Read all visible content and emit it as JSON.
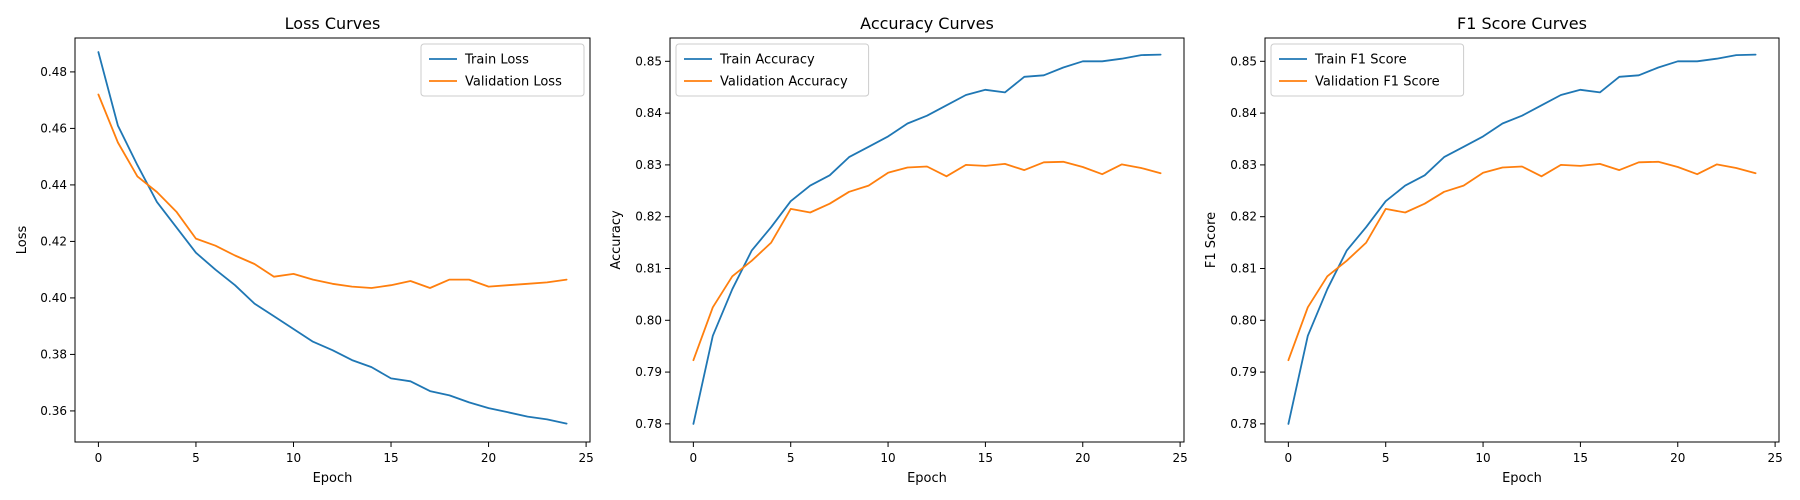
{
  "chart_data": [
    {
      "type": "line",
      "title": "Loss Curves",
      "xlabel": "Epoch",
      "ylabel": "Loss",
      "xlim": [
        -1.2,
        25.2
      ],
      "ylim": [
        0.349,
        0.492
      ],
      "xticks": [
        0,
        5,
        10,
        15,
        20,
        25
      ],
      "yticks": [
        0.36,
        0.38,
        0.4,
        0.42,
        0.44,
        0.46,
        0.48
      ],
      "ytick_labels": [
        "0.36",
        "0.38",
        "0.40",
        "0.42",
        "0.44",
        "0.46",
        "0.48"
      ],
      "legend": "upper right",
      "grid": false,
      "x": [
        0,
        1,
        2,
        3,
        4,
        5,
        6,
        7,
        8,
        9,
        10,
        11,
        12,
        13,
        14,
        15,
        16,
        17,
        18,
        19,
        20,
        21,
        22,
        23,
        24
      ],
      "series": [
        {
          "name": "Train Loss",
          "color": "#1f77b4",
          "values": [
            0.487,
            0.461,
            0.447,
            0.434,
            0.425,
            0.416,
            0.41,
            0.4045,
            0.398,
            0.3935,
            0.389,
            0.3845,
            0.3815,
            0.378,
            0.3755,
            0.3715,
            0.3705,
            0.367,
            0.3655,
            0.363,
            0.361,
            0.3595,
            0.358,
            0.357,
            0.3555
          ]
        },
        {
          "name": "Validation Loss",
          "color": "#ff7f0e",
          "values": [
            0.472,
            0.455,
            0.443,
            0.4375,
            0.4305,
            0.421,
            0.4185,
            0.415,
            0.412,
            0.4075,
            0.4085,
            0.4065,
            0.405,
            0.404,
            0.4035,
            0.4045,
            0.406,
            0.4035,
            0.4065,
            0.4065,
            0.404,
            0.4045,
            0.405,
            0.4055,
            0.4065
          ]
        }
      ]
    },
    {
      "type": "line",
      "title": "Accuracy Curves",
      "xlabel": "Epoch",
      "ylabel": "Accuracy",
      "xlim": [
        -1.2,
        25.2
      ],
      "ylim": [
        0.7765,
        0.8545
      ],
      "xticks": [
        0,
        5,
        10,
        15,
        20,
        25
      ],
      "yticks": [
        0.78,
        0.79,
        0.8,
        0.81,
        0.82,
        0.83,
        0.84,
        0.85
      ],
      "ytick_labels": [
        "0.78",
        "0.79",
        "0.80",
        "0.81",
        "0.82",
        "0.83",
        "0.84",
        "0.85"
      ],
      "legend": "upper left",
      "grid": false,
      "x": [
        0,
        1,
        2,
        3,
        4,
        5,
        6,
        7,
        8,
        9,
        10,
        11,
        12,
        13,
        14,
        15,
        16,
        17,
        18,
        19,
        20,
        21,
        22,
        23,
        24
      ],
      "series": [
        {
          "name": "Train Accuracy",
          "color": "#1f77b4",
          "values": [
            0.78,
            0.797,
            0.806,
            0.8135,
            0.818,
            0.823,
            0.826,
            0.828,
            0.8315,
            0.8335,
            0.8355,
            0.838,
            0.8395,
            0.8415,
            0.8435,
            0.8445,
            0.844,
            0.847,
            0.8473,
            0.8488,
            0.85,
            0.85,
            0.8505,
            0.8512,
            0.8513
          ]
        },
        {
          "name": "Validation Accuracy",
          "color": "#ff7f0e",
          "values": [
            0.7923,
            0.8025,
            0.8085,
            0.8115,
            0.815,
            0.8215,
            0.8208,
            0.8225,
            0.8248,
            0.826,
            0.8285,
            0.8295,
            0.8297,
            0.8278,
            0.83,
            0.8298,
            0.8302,
            0.829,
            0.8305,
            0.8306,
            0.8296,
            0.8282,
            0.8301,
            0.8294,
            0.8284
          ]
        }
      ]
    },
    {
      "type": "line",
      "title": "F1 Score Curves",
      "xlabel": "Epoch",
      "ylabel": "F1 Score",
      "xlim": [
        -1.2,
        25.2
      ],
      "ylim": [
        0.7765,
        0.8545
      ],
      "xticks": [
        0,
        5,
        10,
        15,
        20,
        25
      ],
      "yticks": [
        0.78,
        0.79,
        0.8,
        0.81,
        0.82,
        0.83,
        0.84,
        0.85
      ],
      "ytick_labels": [
        "0.78",
        "0.79",
        "0.80",
        "0.81",
        "0.82",
        "0.83",
        "0.84",
        "0.85"
      ],
      "legend": "upper left",
      "grid": false,
      "x": [
        0,
        1,
        2,
        3,
        4,
        5,
        6,
        7,
        8,
        9,
        10,
        11,
        12,
        13,
        14,
        15,
        16,
        17,
        18,
        19,
        20,
        21,
        22,
        23,
        24
      ],
      "series": [
        {
          "name": "Train F1 Score",
          "color": "#1f77b4",
          "values": [
            0.78,
            0.797,
            0.806,
            0.8135,
            0.818,
            0.823,
            0.826,
            0.828,
            0.8315,
            0.8335,
            0.8355,
            0.838,
            0.8395,
            0.8415,
            0.8435,
            0.8445,
            0.844,
            0.847,
            0.8473,
            0.8488,
            0.85,
            0.85,
            0.8505,
            0.8512,
            0.8513
          ]
        },
        {
          "name": "Validation F1 Score",
          "color": "#ff7f0e",
          "values": [
            0.7923,
            0.8025,
            0.8085,
            0.8115,
            0.815,
            0.8215,
            0.8208,
            0.8225,
            0.8248,
            0.826,
            0.8285,
            0.8295,
            0.8297,
            0.8278,
            0.83,
            0.8298,
            0.8302,
            0.829,
            0.8305,
            0.8306,
            0.8296,
            0.8282,
            0.8301,
            0.8294,
            0.8284
          ]
        }
      ]
    }
  ]
}
